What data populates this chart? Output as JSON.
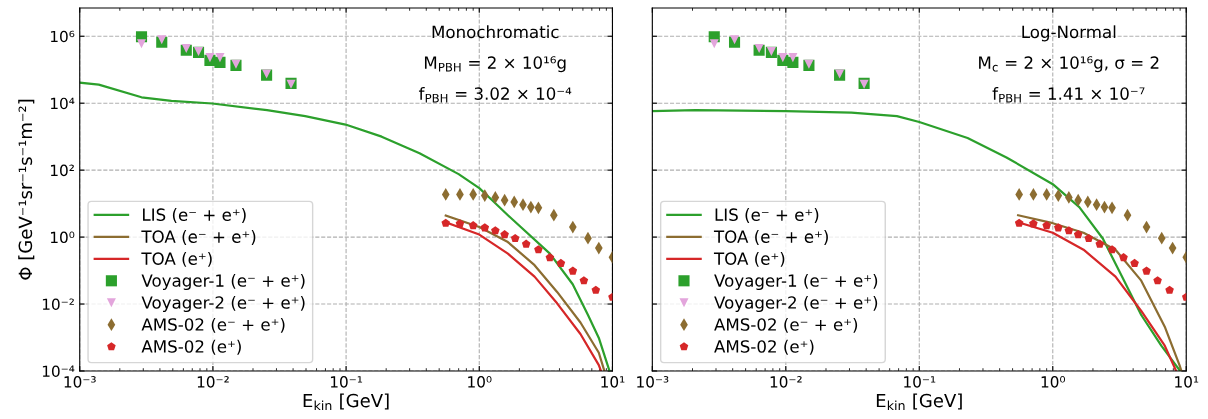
{
  "chart_data": [
    {
      "type": "line",
      "xlabel": "E$_{kin}$ [GeV]",
      "ylabel": "Φ [GeV⁻¹sr⁻¹s⁻¹m⁻²]",
      "annotations": [
        "Monochromatic",
        "M$_{PBH}$ = 2 × 10¹⁶g",
        "f$_{PBH}$ = 3.02 × 10⁻⁴"
      ],
      "log": "xy",
      "grid": true,
      "legend": "lower left",
      "xlim": [
        0.001,
        10
      ],
      "ylim": [
        0.0001,
        7000000
      ],
      "xticks": [
        {
          "value": 0.001,
          "label": "10⁻³"
        },
        {
          "value": 0.01,
          "label": "10⁻²"
        },
        {
          "value": 0.1,
          "label": "10⁻¹"
        },
        {
          "value": 1,
          "label": "10⁰"
        },
        {
          "value": 10,
          "label": "10¹"
        }
      ],
      "yticks": [
        {
          "value": 0.0001,
          "label": "10⁻⁴"
        },
        {
          "value": 0.01,
          "label": "10⁻²"
        },
        {
          "value": 1,
          "label": "10⁰"
        },
        {
          "value": 100,
          "label": "10²"
        },
        {
          "value": 10000,
          "label": "10⁴"
        },
        {
          "value": 1000000,
          "label": "10⁶"
        }
      ],
      "series": [
        {
          "name": "LIS (e⁻ + e⁺)",
          "color": "#2ca02c",
          "x": [
            0.001,
            0.00139,
            0.00291,
            0.00488,
            0.0099,
            0.0255,
            0.0493,
            0.099,
            0.185,
            0.356,
            0.7,
            1.0,
            1.25,
            1.64,
            3.39,
            5.03,
            6.55,
            7.9,
            9.5
          ],
          "values": [
            41000,
            36000,
            15000,
            11700,
            9800,
            6200,
            4100,
            2300,
            1000,
            320,
            76,
            29,
            12.6,
            4.5,
            0.32,
            0.039,
            0.0047,
            0.00097,
            0.0001
          ]
        },
        {
          "name": "TOA (e⁻ + e⁺)",
          "color": "#8c6d31",
          "x": [
            0.56,
            1.0,
            1.64,
            2.6,
            3.84,
            5.75,
            7.9,
            8.7
          ],
          "values": [
            4.4,
            2.0,
            0.71,
            0.145,
            0.023,
            0.0028,
            0.00035,
            0.0001
          ]
        },
        {
          "name": "TOA (e⁺)",
          "color": "#d62728",
          "x": [
            0.56,
            1.0,
            1.64,
            2.6,
            3.84,
            5.75,
            7.9,
            8.2
          ],
          "values": [
            2.76,
            1.19,
            0.32,
            0.066,
            0.0105,
            0.00127,
            0.00015,
            0.0001
          ]
        },
        {
          "name": "Voyager-1 (e⁻ + e⁺)",
          "type": "scatter",
          "marker": "square",
          "color": "#2ca02c",
          "x": [
            0.00291,
            0.00413,
            0.00631,
            0.0078,
            0.0095,
            0.0113,
            0.0149,
            0.0253,
            0.0386
          ],
          "values": [
            970000,
            660000,
            380000,
            330000,
            190000,
            166000,
            135000,
            69000,
            39000
          ]
        },
        {
          "name": "Voyager-2 (e⁻ + e⁺)",
          "type": "scatter",
          "marker": "triangle",
          "color": "#e3a5dc",
          "x": [
            0.00291,
            0.00413,
            0.00631,
            0.0078,
            0.0095,
            0.0113,
            0.0149,
            0.0253,
            0.0386
          ],
          "values": [
            600000,
            790000,
            430000,
            350000,
            230000,
            230000,
            145000,
            74000,
            37000
          ]
        },
        {
          "name": "AMS-02 (e⁻ + e⁺)",
          "type": "scatter",
          "marker": "diamond",
          "color": "#8c6d31",
          "x": [
            0.56,
            0.716,
            0.9,
            1.1,
            1.32,
            1.55,
            1.83,
            2.13,
            2.44,
            2.78,
            3.63,
            5.04,
            6.55,
            7.9,
            10
          ],
          "values": [
            18.8,
            18.8,
            18.8,
            17.4,
            15.3,
            12.7,
            11.2,
            9.3,
            7.9,
            7.5,
            4.5,
            2.0,
            0.93,
            0.47,
            0.25
          ]
        },
        {
          "name": "AMS-02 (e⁺)",
          "type": "scatter",
          "color": "#d62728",
          "x": [
            0.56,
            0.716,
            0.9,
            1.1,
            1.32,
            1.55,
            1.86,
            2.25,
            2.78,
            3.39,
            4.1,
            5.04,
            6.1,
            7.5,
            10
          ],
          "values": [
            2.6,
            2.5,
            2.2,
            1.9,
            1.55,
            1.19,
            0.91,
            0.62,
            0.42,
            0.245,
            0.165,
            0.097,
            0.05,
            0.026,
            0.016
          ]
        }
      ]
    },
    {
      "type": "line",
      "xlabel": "E$_{kin}$ [GeV]",
      "annotations": [
        "Log-Normal",
        "M$_{c}$ = 2 × 10¹⁶g, σ = 2",
        "f$_{PBH}$ = 1.41 × 10⁻⁷"
      ],
      "log": "xy",
      "grid": true,
      "legend": "lower left",
      "tick_labels": "x",
      "xlim": [
        0.001,
        10
      ],
      "ylim": [
        0.0001,
        7000000
      ],
      "xticks": [
        {
          "value": 0.001,
          "label": "10⁻³"
        },
        {
          "value": 0.01,
          "label": "10⁻²"
        },
        {
          "value": 0.1,
          "label": "10⁻¹"
        },
        {
          "value": 1,
          "label": "10⁰"
        },
        {
          "value": 10,
          "label": "10¹"
        }
      ],
      "yticks": [
        {
          "value": 0.0001,
          "label": null
        },
        {
          "value": 0.01,
          "label": null
        },
        {
          "value": 1,
          "label": null
        },
        {
          "value": 100,
          "label": null
        },
        {
          "value": 10000,
          "label": null
        },
        {
          "value": 1000000,
          "label": null
        }
      ],
      "series": [
        {
          "name": "LIS (e⁻ + e⁺)",
          "color": "#2ca02c",
          "x": [
            0.001,
            0.0021,
            0.01,
            0.031,
            0.068,
            0.1,
            0.23,
            0.45,
            1.0,
            1.58,
            2.37,
            3.3,
            4.6,
            6.5,
            9.0
          ],
          "values": [
            5800,
            6200,
            5800,
            5200,
            4100,
            2750,
            910,
            240,
            38,
            7.9,
            0.91,
            0.066,
            0.0047,
            0.00057,
            0.0001
          ]
        },
        {
          "name": "TOA (e⁻ + e⁺)",
          "color": "#8c6d31",
          "x": [
            0.55,
            1.0,
            1.7,
            2.95,
            4.6,
            6.9,
            8.9,
            9.2
          ],
          "values": [
            4.5,
            2.6,
            1.35,
            0.42,
            0.05,
            0.0021,
            0.00015,
            0.0001
          ]
        },
        {
          "name": "TOA (e⁺)",
          "color": "#d62728",
          "x": [
            0.55,
            1.0,
            1.7,
            2.95,
            4.6,
            6.9,
            8.4
          ],
          "values": [
            2.76,
            1.35,
            0.42,
            0.066,
            0.0062,
            0.00057,
            0.0001
          ]
        },
        {
          "name": "Voyager-1 (e⁻ + e⁺)",
          "type": "scatter",
          "marker": "square",
          "color": "#2ca02c",
          "x": [
            0.00291,
            0.00413,
            0.00631,
            0.0078,
            0.0095,
            0.0113,
            0.0149,
            0.0253,
            0.0386
          ],
          "values": [
            970000,
            660000,
            380000,
            330000,
            190000,
            166000,
            135000,
            69000,
            39000
          ]
        },
        {
          "name": "Voyager-2 (e⁻ + e⁺)",
          "type": "scatter",
          "marker": "triangle",
          "color": "#e3a5dc",
          "x": [
            0.00291,
            0.00413,
            0.00631,
            0.0078,
            0.0095,
            0.0113,
            0.0149,
            0.0253,
            0.0386
          ],
          "values": [
            600000,
            790000,
            430000,
            350000,
            230000,
            230000,
            145000,
            74000,
            37000
          ]
        },
        {
          "name": "AMS-02 (e⁻ + e⁺)",
          "type": "scatter",
          "marker": "diamond",
          "color": "#8c6d31",
          "x": [
            0.56,
            0.716,
            0.9,
            1.1,
            1.32,
            1.55,
            1.83,
            2.13,
            2.44,
            2.78,
            3.63,
            5.04,
            6.55,
            7.9,
            10
          ],
          "values": [
            18.8,
            18.8,
            18.8,
            17.4,
            15.3,
            12.7,
            11.2,
            9.3,
            7.9,
            7.5,
            4.5,
            2.0,
            0.93,
            0.47,
            0.25
          ]
        },
        {
          "name": "AMS-02 (e⁺)",
          "type": "scatter",
          "color": "#d62728",
          "x": [
            0.56,
            0.716,
            0.9,
            1.1,
            1.32,
            1.55,
            1.86,
            2.25,
            2.78,
            3.39,
            4.1,
            5.04,
            6.1,
            7.5,
            10
          ],
          "values": [
            2.6,
            2.5,
            2.2,
            1.9,
            1.55,
            1.19,
            0.91,
            0.62,
            0.42,
            0.245,
            0.165,
            0.097,
            0.05,
            0.026,
            0.016
          ]
        }
      ]
    }
  ]
}
